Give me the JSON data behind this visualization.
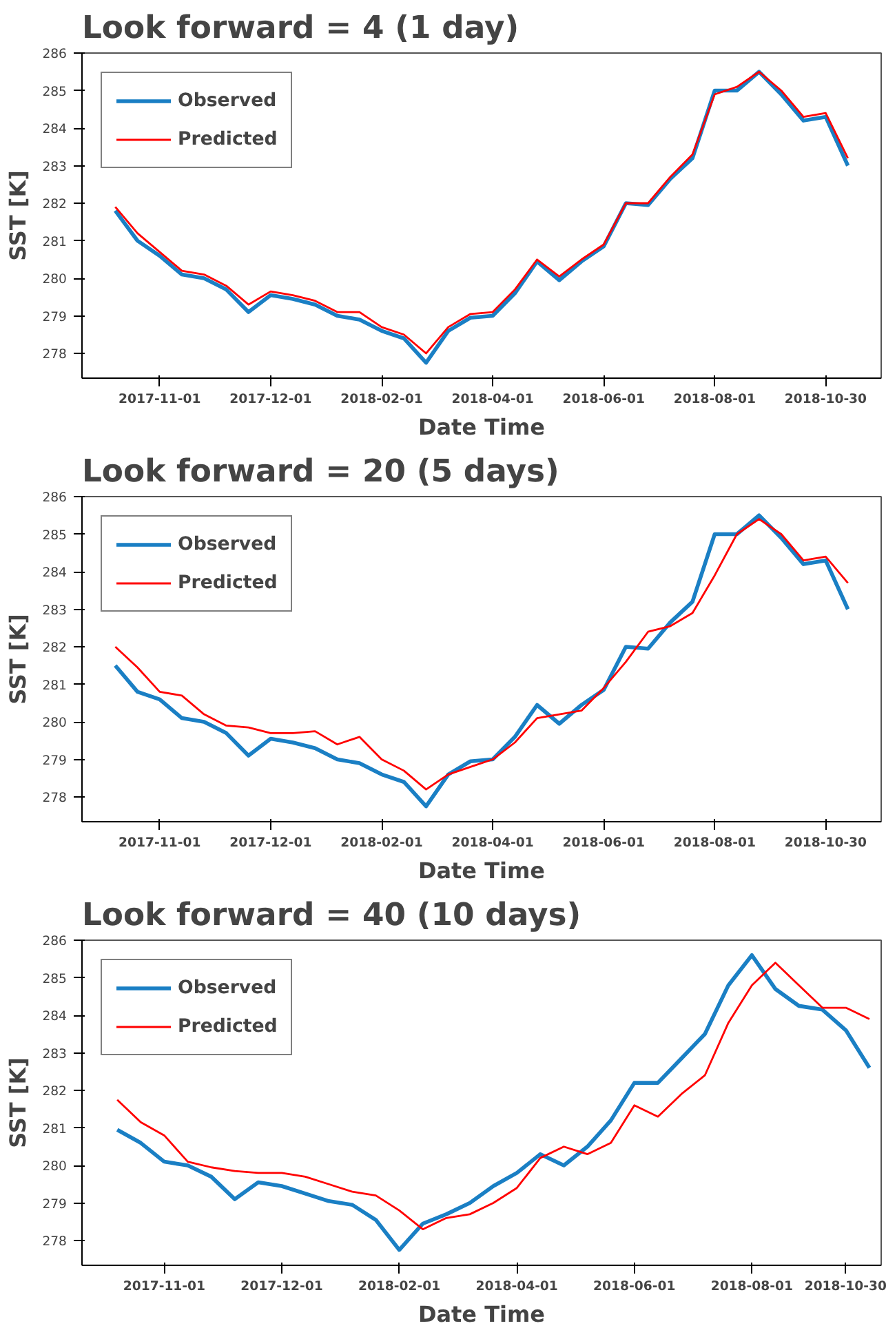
{
  "chart_data": [
    {
      "type": "line",
      "title": "Look forward = 4 (1 day)",
      "xlabel": "Date Time",
      "ylabel": "SST [K]",
      "legend": "top left",
      "grid": false,
      "ylim": [
        277.34,
        286
      ],
      "categories": [
        null,
        null,
        null,
        "2017-11-01",
        null,
        null,
        null,
        null,
        "2017-12-01",
        null,
        null,
        null,
        null,
        "2018-02-01",
        null,
        null,
        null,
        null,
        "2018-04-01",
        null,
        null,
        null,
        null,
        "2018-06-01",
        null,
        null,
        null,
        null,
        "2018-08-01",
        null,
        null,
        null,
        null,
        "2018-10-30",
        null,
        null
      ],
      "yticks": [
        278,
        279,
        280,
        281,
        282,
        283,
        284,
        285,
        286
      ],
      "series": [
        {
          "name": "Observed",
          "color": "#1a7fc4",
          "values": [
            null,
            281.8,
            281.0,
            280.6,
            280.1,
            280.0,
            279.7,
            279.1,
            279.55,
            279.45,
            279.3,
            279.0,
            278.9,
            278.6,
            278.4,
            277.75,
            278.6,
            278.95,
            279.0,
            279.6,
            280.45,
            279.95,
            280.45,
            280.85,
            282.0,
            281.95,
            282.65,
            283.2,
            285.0,
            285.0,
            285.5,
            284.9,
            284.2,
            284.3,
            283.0,
            null
          ]
        },
        {
          "name": "Predicted",
          "color": "#ff0000",
          "values": [
            null,
            281.9,
            281.2,
            280.7,
            280.2,
            280.1,
            279.8,
            279.3,
            279.65,
            279.55,
            279.4,
            279.1,
            279.1,
            278.7,
            278.5,
            278.0,
            278.7,
            279.05,
            279.1,
            279.7,
            280.5,
            280.05,
            280.5,
            280.9,
            282.0,
            282.0,
            282.7,
            283.3,
            284.9,
            285.1,
            285.5,
            285.0,
            284.3,
            284.4,
            283.2,
            null
          ]
        }
      ]
    },
    {
      "type": "line",
      "title": "Look forward = 20 (5 days)",
      "xlabel": "Date Time",
      "ylabel": "SST [K]",
      "legend": "top left",
      "grid": false,
      "ylim": [
        277.34,
        286
      ],
      "categories": [
        null,
        null,
        null,
        "2017-11-01",
        null,
        null,
        null,
        null,
        "2017-12-01",
        null,
        null,
        null,
        null,
        "2018-02-01",
        null,
        null,
        null,
        null,
        "2018-04-01",
        null,
        null,
        null,
        null,
        "2018-06-01",
        null,
        null,
        null,
        null,
        "2018-08-01",
        null,
        null,
        null,
        null,
        "2018-10-30",
        null,
        null
      ],
      "yticks": [
        278,
        279,
        280,
        281,
        282,
        283,
        284,
        285,
        286
      ],
      "series": [
        {
          "name": "Observed",
          "color": "#1a7fc4",
          "values": [
            null,
            281.5,
            280.8,
            280.6,
            280.1,
            280.0,
            279.7,
            279.1,
            279.55,
            279.45,
            279.3,
            279.0,
            278.9,
            278.6,
            278.4,
            277.75,
            278.6,
            278.95,
            279.0,
            279.6,
            280.45,
            279.95,
            280.45,
            280.85,
            282.0,
            281.95,
            282.65,
            283.2,
            285.0,
            285.0,
            285.5,
            284.9,
            284.2,
            284.3,
            283.0,
            null
          ]
        },
        {
          "name": "Predicted",
          "color": "#ff0000",
          "values": [
            null,
            282.0,
            281.45,
            280.8,
            280.7,
            280.2,
            279.9,
            279.85,
            279.7,
            279.7,
            279.75,
            279.4,
            279.6,
            279.0,
            278.7,
            278.2,
            278.6,
            278.8,
            279.0,
            279.45,
            280.1,
            280.2,
            280.3,
            280.9,
            281.6,
            282.4,
            282.55,
            282.9,
            283.9,
            285.0,
            285.4,
            285.0,
            284.3,
            284.4,
            283.7,
            null
          ]
        }
      ]
    },
    {
      "type": "line",
      "title": "Look forward = 40 (10 days)",
      "xlabel": "Date Time",
      "ylabel": "SST [K]",
      "legend": "top left",
      "grid": false,
      "ylim": [
        277.34,
        286
      ],
      "categories": [
        null,
        null,
        null,
        "2017-11-01",
        null,
        null,
        null,
        null,
        "2017-12-01",
        null,
        null,
        null,
        null,
        "2018-02-01",
        null,
        null,
        null,
        null,
        "2018-04-01",
        null,
        null,
        null,
        null,
        "2018-06-01",
        null,
        null,
        null,
        null,
        "2018-08-01",
        null,
        null,
        null,
        "2018-10-30",
        null
      ],
      "yticks": [
        278,
        279,
        280,
        281,
        282,
        283,
        284,
        285,
        286
      ],
      "series": [
        {
          "name": "Observed",
          "color": "#1a7fc4",
          "values": [
            null,
            280.95,
            280.6,
            280.1,
            280.0,
            279.7,
            279.1,
            279.55,
            279.45,
            279.25,
            279.05,
            278.95,
            278.55,
            277.75,
            278.45,
            278.7,
            279.0,
            279.45,
            279.8,
            280.3,
            280.0,
            280.5,
            281.2,
            282.2,
            282.2,
            282.85,
            283.5,
            284.8,
            285.6,
            284.7,
            284.25,
            284.15,
            283.6,
            282.6
          ]
        },
        {
          "name": "Predicted",
          "color": "#ff0000",
          "values": [
            null,
            281.75,
            281.15,
            280.8,
            280.1,
            279.95,
            279.85,
            279.8,
            279.8,
            279.7,
            279.5,
            279.3,
            279.2,
            278.8,
            278.3,
            278.6,
            278.7,
            279.0,
            279.4,
            280.2,
            280.5,
            280.3,
            280.6,
            281.6,
            281.3,
            281.9,
            282.4,
            283.8,
            284.8,
            285.4,
            284.8,
            284.2,
            284.2,
            283.9
          ]
        }
      ]
    }
  ]
}
